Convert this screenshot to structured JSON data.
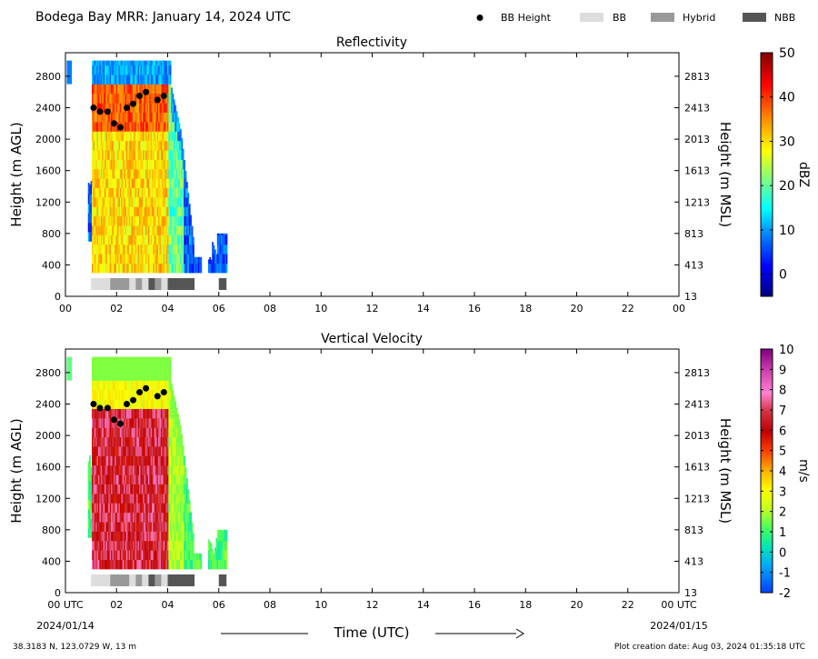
{
  "header": {
    "title": "Bodega Bay MRR:  January 14, 2024 UTC",
    "legend": [
      {
        "label": "BB Height",
        "kind": "dot",
        "color": "#000000"
      },
      {
        "label": "BB",
        "kind": "box",
        "color": "#dddddd"
      },
      {
        "label": "Hybrid",
        "kind": "box",
        "color": "#999999"
      },
      {
        "label": "NBB",
        "kind": "box",
        "color": "#555555"
      }
    ]
  },
  "footer": {
    "location": "38.3183 N, 123.0729 W, 13 m",
    "creation": "Plot creation date: Aug 03, 2024 01:35:18 UTC",
    "xlabel": "Time (UTC)",
    "start_date": "2024/01/14",
    "end_date": "2024/01/15"
  },
  "chart_data": [
    {
      "type": "heatmap",
      "title": "Reflectivity",
      "ylabel": "Height (m AGL)",
      "y2label": "Height (m MSL)",
      "xlim": [
        0,
        24
      ],
      "ylim": [
        0,
        3100
      ],
      "xticks": [
        "00",
        "02",
        "04",
        "06",
        "08",
        "10",
        "12",
        "14",
        "16",
        "18",
        "20",
        "22",
        "00"
      ],
      "yticks": [
        0,
        400,
        800,
        1200,
        1600,
        2000,
        2400,
        2800
      ],
      "y2ticks": [
        "13",
        "413",
        "813",
        "1213",
        "1613",
        "2013",
        "2413",
        "2813"
      ],
      "colorbar": {
        "label": "dBZ",
        "min": -5,
        "max": 50,
        "ticks": [
          0,
          10,
          20,
          30,
          40,
          50
        ]
      },
      "bb_height": {
        "x": [
          1.1,
          1.35,
          1.65,
          1.9,
          2.15,
          2.4,
          2.65,
          2.9,
          3.15,
          3.6,
          3.85
        ],
        "y": [
          2400,
          2350,
          2350,
          2200,
          2150,
          2400,
          2450,
          2550,
          2600,
          2500,
          2550
        ]
      },
      "bb_type_segments": [
        {
          "start": 1.0,
          "end": 1.75,
          "type": "BB"
        },
        {
          "start": 1.75,
          "end": 2.5,
          "type": "Hybrid"
        },
        {
          "start": 2.5,
          "end": 2.75,
          "type": "BB"
        },
        {
          "start": 2.75,
          "end": 3.0,
          "type": "Hybrid"
        },
        {
          "start": 3.0,
          "end": 3.25,
          "type": "BB"
        },
        {
          "start": 3.25,
          "end": 3.5,
          "type": "NBB"
        },
        {
          "start": 3.5,
          "end": 3.75,
          "type": "Hybrid"
        },
        {
          "start": 3.75,
          "end": 4.0,
          "type": "BB"
        },
        {
          "start": 4.0,
          "end": 5.05,
          "type": "NBB"
        },
        {
          "start": 6.0,
          "end": 6.3,
          "type": "NBB"
        }
      ]
    },
    {
      "type": "heatmap",
      "title": "Vertical Velocity",
      "ylabel": "Height (m AGL)",
      "y2label": "Height (m MSL)",
      "xlim": [
        0,
        24
      ],
      "ylim": [
        0,
        3100
      ],
      "xticks": [
        "00 UTC",
        "02",
        "04",
        "06",
        "08",
        "10",
        "12",
        "14",
        "16",
        "18",
        "20",
        "22",
        "00 UTC"
      ],
      "yticks": [
        0,
        400,
        800,
        1200,
        1600,
        2000,
        2400,
        2800
      ],
      "y2ticks": [
        "13",
        "413",
        "813",
        "1213",
        "1613",
        "2013",
        "2413",
        "2813"
      ],
      "colorbar": {
        "label": "m/s",
        "min": -2,
        "max": 10,
        "ticks": [
          -2,
          -1,
          0,
          1,
          2,
          3,
          4,
          5,
          6,
          7,
          8,
          9,
          10
        ]
      },
      "bb_height": {
        "x": [
          1.1,
          1.35,
          1.65,
          1.9,
          2.15,
          2.4,
          2.65,
          2.9,
          3.15,
          3.6,
          3.85
        ],
        "y": [
          2400,
          2350,
          2350,
          2200,
          2150,
          2400,
          2450,
          2550,
          2600,
          2500,
          2550
        ]
      },
      "bb_type_segments": [
        {
          "start": 1.0,
          "end": 1.75,
          "type": "BB"
        },
        {
          "start": 1.75,
          "end": 2.5,
          "type": "Hybrid"
        },
        {
          "start": 2.5,
          "end": 2.75,
          "type": "BB"
        },
        {
          "start": 2.75,
          "end": 3.0,
          "type": "Hybrid"
        },
        {
          "start": 3.0,
          "end": 3.25,
          "type": "BB"
        },
        {
          "start": 3.25,
          "end": 3.5,
          "type": "NBB"
        },
        {
          "start": 3.5,
          "end": 3.75,
          "type": "Hybrid"
        },
        {
          "start": 3.75,
          "end": 4.0,
          "type": "BB"
        },
        {
          "start": 4.0,
          "end": 5.05,
          "type": "NBB"
        },
        {
          "start": 6.0,
          "end": 6.3,
          "type": "NBB"
        }
      ]
    }
  ]
}
